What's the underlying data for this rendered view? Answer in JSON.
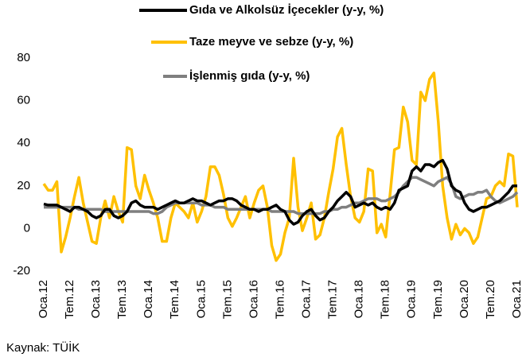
{
  "chart_data": {
    "type": "line",
    "categories": [
      "Oca.12",
      null,
      null,
      null,
      null,
      null,
      "Tem.12",
      null,
      null,
      null,
      null,
      null,
      "Oca.13",
      null,
      null,
      null,
      null,
      null,
      "Tem.13",
      null,
      null,
      null,
      null,
      null,
      "Oca.14",
      null,
      null,
      null,
      null,
      null,
      "Tem.14",
      null,
      null,
      null,
      null,
      null,
      "Oca.15",
      null,
      null,
      null,
      null,
      null,
      "Tem.15",
      null,
      null,
      null,
      null,
      null,
      "Oca.16",
      null,
      null,
      null,
      null,
      null,
      "Tem.16",
      null,
      null,
      null,
      null,
      null,
      "Oca.17",
      null,
      null,
      null,
      null,
      null,
      "Tem.17",
      null,
      null,
      null,
      null,
      null,
      "Oca.18",
      null,
      null,
      null,
      null,
      null,
      "Tem.18",
      null,
      null,
      null,
      null,
      null,
      "Oca.19",
      null,
      null,
      null,
      null,
      null,
      "Tem.19",
      null,
      null,
      null,
      null,
      null,
      "Oca.20",
      null,
      null,
      null,
      null,
      null,
      "Tem.20",
      null,
      null,
      null,
      null,
      null,
      "Oca.21"
    ],
    "series": [
      {
        "name": "Gıda ve Alkolsüz İçecekler (y-y, %)",
        "color": "#000000",
        "values": [
          11.5,
          11,
          11,
          11,
          10,
          9,
          8,
          10,
          10,
          9,
          8,
          6,
          5,
          6,
          9,
          9,
          6,
          5,
          6,
          8,
          12,
          13,
          11,
          10,
          10,
          10,
          9,
          10,
          11,
          12,
          13,
          12,
          12,
          13,
          14,
          13,
          13,
          12,
          11,
          12,
          13,
          13,
          14,
          14,
          13,
          11,
          10,
          9,
          9,
          8,
          9,
          9,
          10,
          11,
          9,
          8,
          4,
          2,
          3,
          6,
          8,
          9,
          6,
          4,
          5,
          8,
          10,
          13,
          15,
          17,
          15,
          10,
          11,
          12,
          11,
          12,
          10,
          9,
          10,
          9,
          12,
          18,
          19,
          20,
          27,
          29,
          27,
          30,
          30,
          29,
          31,
          32,
          28,
          20,
          18,
          17,
          12,
          9,
          8,
          9,
          10,
          10,
          11,
          12,
          13,
          15,
          17,
          20,
          20
        ]
      },
      {
        "name": "Taze meyve ve sebze (y-y, %)",
        "color": "#ffc000",
        "values": [
          21,
          18,
          18,
          22,
          -11,
          -4,
          5,
          15,
          24,
          12,
          3,
          -6,
          -7,
          5,
          13,
          5,
          15,
          8,
          3,
          38,
          37,
          20,
          14,
          25,
          18,
          12,
          5,
          -6,
          -6,
          5,
          12,
          10,
          8,
          5,
          12,
          3,
          8,
          15,
          29,
          29,
          25,
          16,
          5,
          1,
          5,
          10,
          15,
          5,
          12,
          18,
          20,
          10,
          -8,
          -15,
          -12,
          -2,
          5,
          33,
          10,
          -1,
          5,
          12,
          -5,
          -3,
          5,
          17,
          28,
          43,
          47,
          30,
          15,
          5,
          3,
          8,
          28,
          27,
          -2,
          2,
          -4,
          16,
          37,
          38,
          57,
          50,
          32,
          30,
          64,
          60,
          70,
          73,
          50,
          20,
          5,
          -5,
          2,
          -3,
          0,
          -2,
          -7,
          -4,
          5,
          14,
          15,
          20,
          22,
          20,
          35,
          34,
          10
        ]
      },
      {
        "name": "İşlenmiş gıda (y-y, %)",
        "color": "#7f7f7f",
        "values": [
          10,
          10,
          10,
          10,
          10,
          10,
          10,
          10,
          9,
          9,
          9,
          9,
          9,
          9,
          8,
          8,
          8,
          8,
          8,
          8,
          8,
          8,
          8,
          8,
          8,
          7,
          7,
          8,
          10,
          11,
          12,
          12,
          12,
          12,
          12,
          12,
          11,
          11,
          11,
          10,
          10,
          10,
          9,
          9,
          9,
          9,
          9,
          9,
          9,
          9,
          9,
          9,
          8,
          8,
          8,
          8,
          8,
          8,
          7,
          7,
          7,
          7,
          7,
          7,
          8,
          8,
          9,
          9,
          10,
          10,
          11,
          12,
          12,
          13,
          14,
          14,
          14,
          13,
          13,
          14,
          15,
          17,
          20,
          22,
          24,
          24,
          23,
          22,
          21,
          20,
          22,
          23,
          24,
          21,
          15,
          14,
          15,
          16,
          16,
          17,
          17,
          18,
          15,
          13,
          12,
          13,
          14,
          15,
          17
        ]
      }
    ],
    "ylim": [
      -20,
      80
    ],
    "yticks": [
      -20,
      0,
      20,
      40,
      60,
      80
    ],
    "source": "Kaynak: TÜİK"
  }
}
